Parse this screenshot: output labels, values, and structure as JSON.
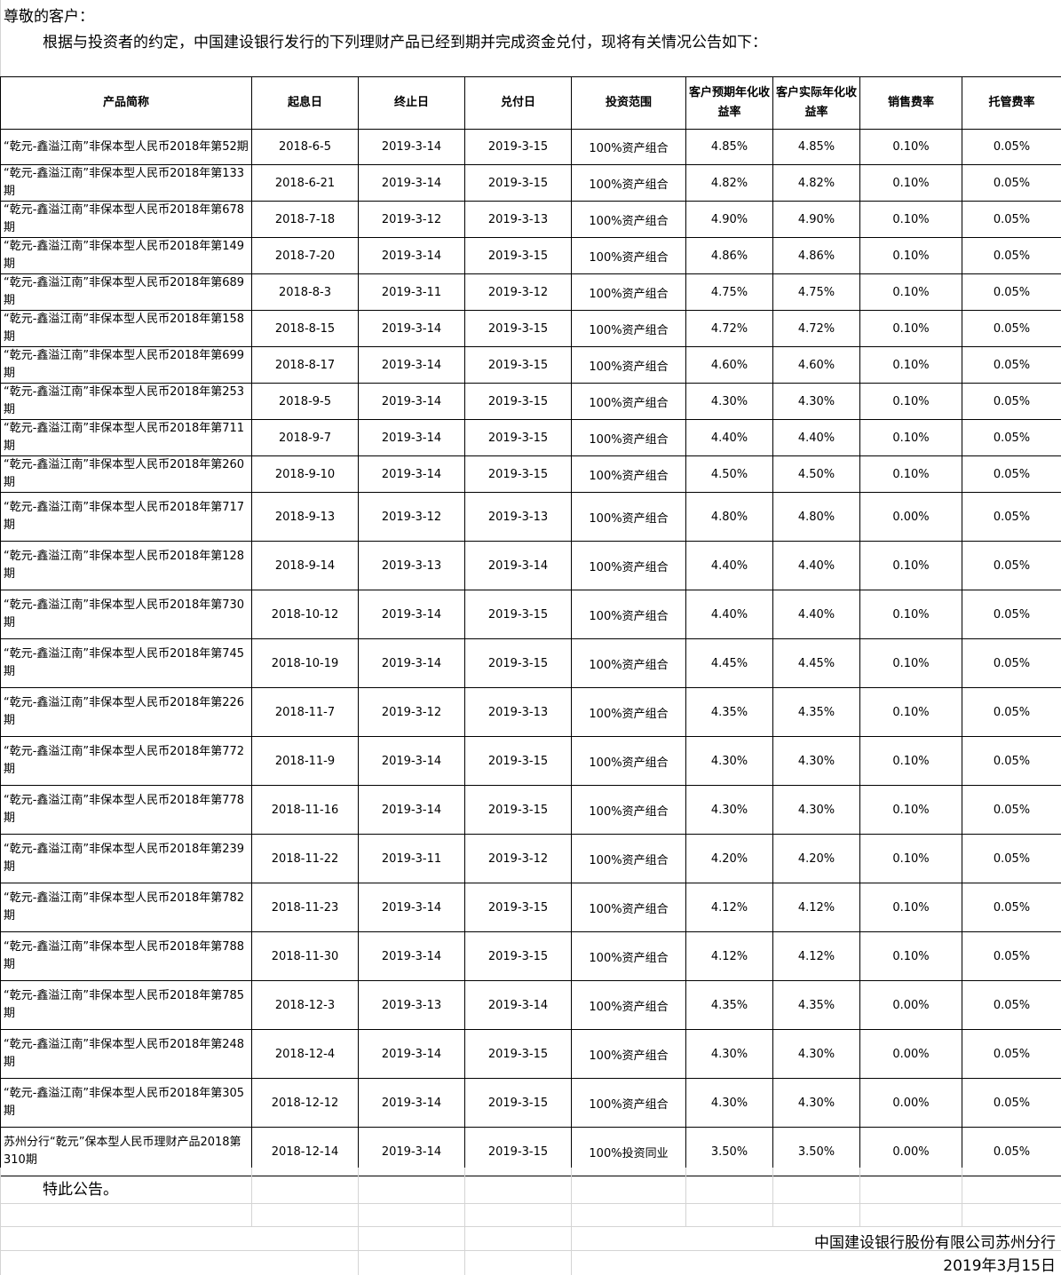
{
  "greeting": "尊敬的客户：",
  "intro": "根据与投资者的约定，中国建设银行发行的下列理财产品已经到期并完成资金兑付，现将有关情况公告如下：",
  "table": {
    "headers": [
      "产品简称",
      "起息日",
      "终止日",
      "兑付日",
      "投资范围",
      "客户预期年化收益率",
      "客户实际年化收益率",
      "销售费率",
      "托管费率"
    ],
    "rows": [
      [
        "“乾元-鑫溢江南”非保本型人民币2018年第52期",
        "2018-6-5",
        "2019-3-14",
        "2019-3-15",
        "100%资产组合",
        "4.85%",
        "4.85%",
        "0.10%",
        "0.05%"
      ],
      [
        "“乾元-鑫溢江南”非保本型人民币2018年第133期",
        "2018-6-21",
        "2019-3-14",
        "2019-3-15",
        "100%资产组合",
        "4.82%",
        "4.82%",
        "0.10%",
        "0.05%"
      ],
      [
        "“乾元-鑫溢江南”非保本型人民币2018年第678期",
        "2018-7-18",
        "2019-3-12",
        "2019-3-13",
        "100%资产组合",
        "4.90%",
        "4.90%",
        "0.10%",
        "0.05%"
      ],
      [
        "“乾元-鑫溢江南”非保本型人民币2018年第149期",
        "2018-7-20",
        "2019-3-14",
        "2019-3-15",
        "100%资产组合",
        "4.86%",
        "4.86%",
        "0.10%",
        "0.05%"
      ],
      [
        "“乾元-鑫溢江南”非保本型人民币2018年第689期",
        "2018-8-3",
        "2019-3-11",
        "2019-3-12",
        "100%资产组合",
        "4.75%",
        "4.75%",
        "0.10%",
        "0.05%"
      ],
      [
        "“乾元-鑫溢江南”非保本型人民币2018年第158期",
        "2018-8-15",
        "2019-3-14",
        "2019-3-15",
        "100%资产组合",
        "4.72%",
        "4.72%",
        "0.10%",
        "0.05%"
      ],
      [
        "“乾元-鑫溢江南”非保本型人民币2018年第699期",
        "2018-8-17",
        "2019-3-14",
        "2019-3-15",
        "100%资产组合",
        "4.60%",
        "4.60%",
        "0.10%",
        "0.05%"
      ],
      [
        "“乾元-鑫溢江南”非保本型人民币2018年第253期",
        "2018-9-5",
        "2019-3-14",
        "2019-3-15",
        "100%资产组合",
        "4.30%",
        "4.30%",
        "0.10%",
        "0.05%"
      ],
      [
        "“乾元-鑫溢江南”非保本型人民币2018年第711期",
        "2018-9-7",
        "2019-3-14",
        "2019-3-15",
        "100%资产组合",
        "4.40%",
        "4.40%",
        "0.10%",
        "0.05%"
      ],
      [
        "“乾元-鑫溢江南”非保本型人民币2018年第260期",
        "2018-9-10",
        "2019-3-14",
        "2019-3-15",
        "100%资产组合",
        "4.50%",
        "4.50%",
        "0.10%",
        "0.05%"
      ],
      [
        "“乾元-鑫溢江南”非保本型人民币2018年第717期",
        "2018-9-13",
        "2019-3-12",
        "2019-3-13",
        "100%资产组合",
        "4.80%",
        "4.80%",
        "0.00%",
        "0.05%"
      ],
      [
        "“乾元-鑫溢江南”非保本型人民币2018年第128期",
        "2018-9-14",
        "2019-3-13",
        "2019-3-14",
        "100%资产组合",
        "4.40%",
        "4.40%",
        "0.10%",
        "0.05%"
      ],
      [
        "“乾元-鑫溢江南”非保本型人民币2018年第730期",
        "2018-10-12",
        "2019-3-14",
        "2019-3-15",
        "100%资产组合",
        "4.40%",
        "4.40%",
        "0.10%",
        "0.05%"
      ],
      [
        "“乾元-鑫溢江南”非保本型人民币2018年第745期",
        "2018-10-19",
        "2019-3-14",
        "2019-3-15",
        "100%资产组合",
        "4.45%",
        "4.45%",
        "0.10%",
        "0.05%"
      ],
      [
        "“乾元-鑫溢江南”非保本型人民币2018年第226期",
        "2018-11-7",
        "2019-3-12",
        "2019-3-13",
        "100%资产组合",
        "4.35%",
        "4.35%",
        "0.10%",
        "0.05%"
      ],
      [
        "“乾元-鑫溢江南”非保本型人民币2018年第772期",
        "2018-11-9",
        "2019-3-14",
        "2019-3-15",
        "100%资产组合",
        "4.30%",
        "4.30%",
        "0.10%",
        "0.05%"
      ],
      [
        "“乾元-鑫溢江南”非保本型人民币2018年第778期",
        "2018-11-16",
        "2019-3-14",
        "2019-3-15",
        "100%资产组合",
        "4.30%",
        "4.30%",
        "0.10%",
        "0.05%"
      ],
      [
        "“乾元-鑫溢江南”非保本型人民币2018年第239期",
        "2018-11-22",
        "2019-3-11",
        "2019-3-12",
        "100%资产组合",
        "4.20%",
        "4.20%",
        "0.10%",
        "0.05%"
      ],
      [
        "“乾元-鑫溢江南”非保本型人民币2018年第782期",
        "2018-11-23",
        "2019-3-14",
        "2019-3-15",
        "100%资产组合",
        "4.12%",
        "4.12%",
        "0.10%",
        "0.05%"
      ],
      [
        "“乾元-鑫溢江南”非保本型人民币2018年第788期",
        "2018-11-30",
        "2019-3-14",
        "2019-3-15",
        "100%资产组合",
        "4.12%",
        "4.12%",
        "0.10%",
        "0.05%"
      ],
      [
        "“乾元-鑫溢江南”非保本型人民币2018年第785期",
        "2018-12-3",
        "2019-3-13",
        "2019-3-14",
        "100%资产组合",
        "4.35%",
        "4.35%",
        "0.00%",
        "0.05%"
      ],
      [
        "“乾元-鑫溢江南”非保本型人民币2018年第248期",
        "2018-12-4",
        "2019-3-14",
        "2019-3-15",
        "100%资产组合",
        "4.30%",
        "4.30%",
        "0.00%",
        "0.05%"
      ],
      [
        "“乾元-鑫溢江南”非保本型人民币2018年第305期",
        "2018-12-12",
        "2019-3-14",
        "2019-3-15",
        "100%资产组合",
        "4.30%",
        "4.30%",
        "0.00%",
        "0.05%"
      ],
      [
        "苏州分行“乾元”保本型人民币理财产品2018第310期",
        "2018-12-14",
        "2019-3-14",
        "2019-3-15",
        "100%投资同业",
        "3.50%",
        "3.50%",
        "0.00%",
        "0.05%"
      ]
    ]
  },
  "closing": "特此公告。",
  "signature": {
    "org": "中国建设银行股份有限公司苏州分行",
    "date": "2019年3月15日"
  }
}
